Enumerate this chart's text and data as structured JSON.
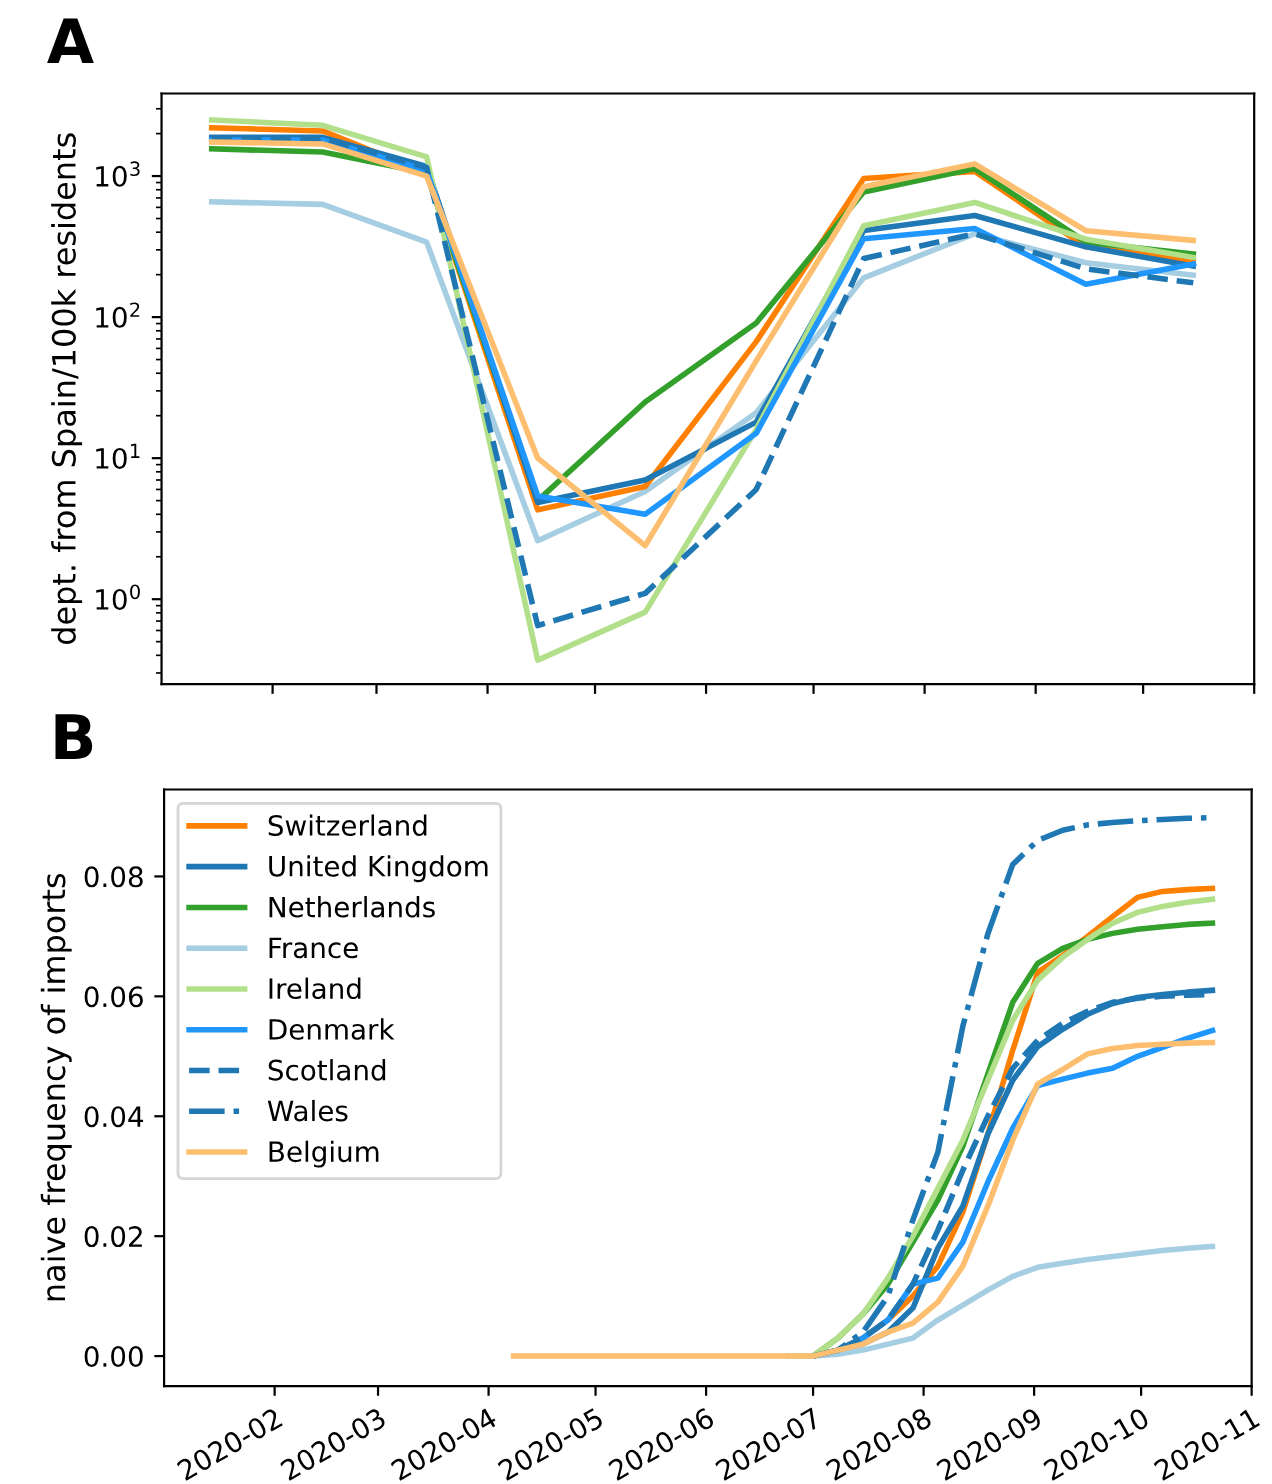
{
  "chart_data": [
    {
      "type": "line",
      "title": "A",
      "ylabel": "dept. from Spain/100k residents",
      "log": "y",
      "tick_labels": "y",
      "grid": false,
      "legend": false,
      "x": [
        "2020-01-15",
        "2020-02-15",
        "2020-03-15",
        "2020-04-15",
        "2020-05-15",
        "2020-06-15",
        "2020-07-15",
        "2020-08-15",
        "2020-09-15",
        "2020-10-15"
      ],
      "xlim": [
        "2020-01-01",
        "2020-11-01"
      ],
      "xticks": [
        {
          "value": "2020-02-01",
          "label": null
        },
        {
          "value": "2020-03-01",
          "label": null
        },
        {
          "value": "2020-04-01",
          "label": null
        },
        {
          "value": "2020-05-01",
          "label": null
        },
        {
          "value": "2020-06-01",
          "label": null
        },
        {
          "value": "2020-07-01",
          "label": null
        },
        {
          "value": "2020-08-01",
          "label": null
        },
        {
          "value": "2020-09-01",
          "label": null
        },
        {
          "value": "2020-10-01",
          "label": null
        },
        {
          "value": "2020-11-01",
          "label": null
        }
      ],
      "ylim": [
        0.25,
        3850
      ],
      "yticks": [
        {
          "value": 1,
          "label": "10$^{0}$"
        },
        {
          "value": 10,
          "label": "10$^{1}$"
        },
        {
          "value": 100,
          "label": "10$^{2}$"
        },
        {
          "value": 1000,
          "label": "10$^{3}$"
        }
      ],
      "series": [
        {
          "color": "#a6cee3",
          "line_style": "solid",
          "values": [
            656,
            630,
            340,
            2.6,
            5.8,
            21,
            190,
            390,
            243,
            198
          ]
        },
        {
          "color": "#ff7f00",
          "line_style": "solid",
          "values": [
            2200,
            2090,
            1050,
            4.3,
            6.3,
            67,
            960,
            1080,
            315,
            250
          ]
        },
        {
          "color": "#33a02c",
          "line_style": "solid",
          "values": [
            1560,
            1480,
            1050,
            5,
            25,
            91,
            770,
            1130,
            340,
            280
          ]
        },
        {
          "color": "#1f78b4",
          "line_style": "solid",
          "values": [
            1880,
            1880,
            1170,
            4.85,
            7.0,
            18,
            411,
            525,
            315,
            230
          ]
        },
        {
          "color": "#b2df8a",
          "line_style": "solid",
          "values": [
            2500,
            2290,
            1370,
            0.37,
            0.81,
            16,
            444,
            650,
            357,
            265
          ]
        },
        {
          "color": "#1f97ff",
          "line_style": "solid",
          "values": [
            1800,
            1800,
            1100,
            5.4,
            4.0,
            15,
            360,
            425,
            171,
            238
          ]
        },
        {
          "color": "#1f78b4",
          "line_style": "dashed",
          "values": [
            1850,
            1850,
            1150,
            0.65,
            1.1,
            6.0,
            260,
            390,
            220,
            175
          ]
        },
        {
          "color": "#fdbf6f",
          "line_style": "solid",
          "values": [
            1740,
            1690,
            1000,
            10,
            2.4,
            49,
            840,
            1220,
            410,
            350
          ]
        }
      ]
    },
    {
      "type": "line",
      "title": "B",
      "ylabel": "naive frequency of imports",
      "grid": false,
      "legend": "top left",
      "x": [
        "2020-04-08",
        "2020-04-15",
        "2020-04-22",
        "2020-04-29",
        "2020-05-06",
        "2020-05-13",
        "2020-05-20",
        "2020-05-27",
        "2020-06-03",
        "2020-06-10",
        "2020-06-17",
        "2020-06-24",
        "2020-07-01",
        "2020-07-08",
        "2020-07-15",
        "2020-07-22",
        "2020-07-29",
        "2020-08-05",
        "2020-08-12",
        "2020-08-19",
        "2020-08-26",
        "2020-09-02",
        "2020-09-09",
        "2020-09-16",
        "2020-09-23",
        "2020-09-30",
        "2020-10-07",
        "2020-10-14",
        "2020-10-21"
      ],
      "xlim": [
        "2020-01-01",
        "2020-11-01"
      ],
      "xticks": [
        {
          "value": "2020-02-01",
          "label": "2020-02"
        },
        {
          "value": "2020-03-01",
          "label": "2020-03"
        },
        {
          "value": "2020-04-01",
          "label": "2020-04"
        },
        {
          "value": "2020-05-01",
          "label": "2020-05"
        },
        {
          "value": "2020-06-01",
          "label": "2020-06"
        },
        {
          "value": "2020-07-01",
          "label": "2020-07"
        },
        {
          "value": "2020-08-01",
          "label": "2020-08"
        },
        {
          "value": "2020-09-01",
          "label": "2020-09"
        },
        {
          "value": "2020-10-01",
          "label": "2020-10"
        },
        {
          "value": "2020-11-01",
          "label": "2020-11"
        }
      ],
      "ylim": [
        -0.005,
        0.0945
      ],
      "yticks": [
        {
          "value": 0,
          "label": "0.00"
        },
        {
          "value": 0.02,
          "label": "0.02"
        },
        {
          "value": 0.04,
          "label": "0.04"
        },
        {
          "value": 0.06,
          "label": "0.06"
        },
        {
          "value": 0.08,
          "label": "0.08"
        }
      ],
      "series": [
        {
          "name": "Switzerland",
          "color": "#ff7f00",
          "line_style": "solid",
          "values": [
            null,
            null,
            null,
            null,
            null,
            null,
            null,
            null,
            null,
            null,
            null,
            0,
            0,
            0.001,
            0.003,
            0.006,
            0.01,
            0.015,
            0.024,
            0.037,
            0.051,
            0.064,
            0.0668,
            0.07,
            0.0733,
            0.0765,
            0.0775,
            0.0778,
            0.078
          ]
        },
        {
          "name": "United Kingdom",
          "color": "#1f78b4",
          "line_style": "solid",
          "values": [
            null,
            null,
            null,
            null,
            null,
            null,
            null,
            null,
            null,
            null,
            null,
            0,
            0,
            0.001,
            0.002,
            0.004,
            0.008,
            0.018,
            0.025,
            0.037,
            0.046,
            0.0516,
            0.0545,
            0.057,
            0.0588,
            0.0598,
            0.0603,
            0.0607,
            0.061
          ]
        },
        {
          "name": "Netherlands",
          "color": "#33a02c",
          "line_style": "solid",
          "values": [
            null,
            null,
            null,
            null,
            null,
            null,
            null,
            null,
            null,
            null,
            null,
            0,
            0,
            0.003,
            0.007,
            0.012,
            0.019,
            0.026,
            0.035,
            0.047,
            0.059,
            0.0655,
            0.068,
            0.0695,
            0.0705,
            0.0712,
            0.0716,
            0.072,
            0.0722
          ]
        },
        {
          "name": "France",
          "color": "#a6cee3",
          "line_style": "solid",
          "values": [
            null,
            null,
            null,
            null,
            null,
            null,
            null,
            null,
            null,
            null,
            null,
            0,
            0,
            0.0003,
            0.001,
            0.002,
            0.003,
            0.006,
            0.0085,
            0.011,
            0.0133,
            0.0148,
            0.0155,
            0.0161,
            0.0166,
            0.0171,
            0.0176,
            0.018,
            0.0183
          ]
        },
        {
          "name": "Ireland",
          "color": "#b2df8a",
          "line_style": "solid",
          "values": [
            null,
            null,
            null,
            null,
            null,
            null,
            null,
            null,
            null,
            null,
            null,
            0,
            0,
            0.003,
            0.007,
            0.013,
            0.02,
            0.028,
            0.036,
            0.046,
            0.056,
            0.0627,
            0.0665,
            0.0695,
            0.0722,
            0.074,
            0.075,
            0.0757,
            0.0762
          ]
        },
        {
          "name": "Denmark",
          "color": "#1f97ff",
          "line_style": "solid",
          "values": [
            null,
            null,
            null,
            null,
            null,
            null,
            null,
            null,
            null,
            null,
            null,
            null,
            null,
            0.001,
            0.003,
            0.006,
            0.012,
            0.013,
            0.019,
            0.029,
            0.038,
            0.0451,
            0.0462,
            0.0472,
            0.048,
            0.05,
            0.0515,
            0.053,
            0.0543
          ]
        },
        {
          "name": "Scotland",
          "color": "#1f78b4",
          "line_style": "dashed",
          "values": [
            null,
            null,
            null,
            null,
            null,
            null,
            null,
            null,
            null,
            null,
            null,
            null,
            0,
            0.001,
            0.003,
            0.006,
            0.012,
            0.021,
            0.031,
            0.04,
            0.048,
            0.0527,
            0.0555,
            0.0575,
            0.059,
            0.0597,
            0.06,
            0.0602,
            0.0603
          ]
        },
        {
          "name": "Wales",
          "color": "#1f78b4",
          "line_style": "dashdot",
          "values": [
            null,
            null,
            null,
            null,
            null,
            null,
            null,
            null,
            null,
            null,
            null,
            null,
            0,
            0.001,
            0.004,
            0.01,
            0.0227,
            0.034,
            0.055,
            0.0704,
            0.082,
            0.086,
            0.0877,
            0.0886,
            0.089,
            0.0893,
            0.0895,
            0.0897,
            0.0898
          ]
        },
        {
          "name": "Belgium",
          "color": "#fdbf6f",
          "line_style": "solid",
          "values": [
            0,
            0,
            0,
            0,
            0,
            0,
            0,
            0,
            0,
            0,
            0,
            0,
            0,
            0.001,
            0.002,
            0.004,
            0.0055,
            0.009,
            0.015,
            0.025,
            0.036,
            0.0454,
            0.0478,
            0.0504,
            0.0513,
            0.0518,
            0.052,
            0.0522,
            0.0523
          ]
        }
      ]
    }
  ]
}
